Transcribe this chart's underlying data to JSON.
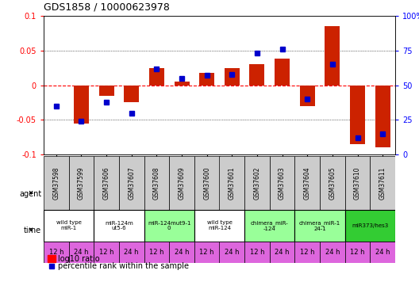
{
  "title": "GDS1858 / 10000623978",
  "samples": [
    "GSM37598",
    "GSM37599",
    "GSM37606",
    "GSM37607",
    "GSM37608",
    "GSM37609",
    "GSM37600",
    "GSM37601",
    "GSM37602",
    "GSM37603",
    "GSM37604",
    "GSM37605",
    "GSM37610",
    "GSM37611"
  ],
  "log10_ratio": [
    0.0,
    -0.055,
    -0.015,
    -0.025,
    0.025,
    0.005,
    0.018,
    0.025,
    0.03,
    0.038,
    -0.03,
    0.085,
    -0.085,
    -0.09
  ],
  "percentile_rank": [
    35,
    24,
    38,
    30,
    62,
    55,
    57,
    58,
    73,
    76,
    40,
    65,
    12,
    15
  ],
  "ylim_left": [
    -0.1,
    0.1
  ],
  "ylim_right": [
    0,
    100
  ],
  "yticks_left": [
    -0.1,
    -0.05,
    0.0,
    0.05,
    0.1
  ],
  "yticks_right": [
    0,
    25,
    50,
    75,
    100
  ],
  "ytick_labels_left": [
    "-0.1",
    "-0.05",
    "0",
    "0.05",
    "0.1"
  ],
  "ytick_labels_right": [
    "0",
    "25",
    "50",
    "75",
    "100%"
  ],
  "bar_color": "#cc2200",
  "dot_color": "#0000cc",
  "zero_line_color": "#cc0000",
  "agent_groups": [
    {
      "label": "wild type\nmiR-1",
      "samples": [
        0,
        1
      ],
      "color": "#ffffff"
    },
    {
      "label": "miR-124m\nut5-6",
      "samples": [
        2,
        3
      ],
      "color": "#ffffff"
    },
    {
      "label": "miR-124mut9-1\n0",
      "samples": [
        4,
        5
      ],
      "color": "#99ff99"
    },
    {
      "label": "wild type\nmiR-124",
      "samples": [
        6,
        7
      ],
      "color": "#ffffff"
    },
    {
      "label": "chimera_miR-\n-124",
      "samples": [
        8,
        9
      ],
      "color": "#99ff99"
    },
    {
      "label": "chimera_miR-1\n24-1",
      "samples": [
        10,
        11
      ],
      "color": "#99ff99"
    },
    {
      "label": "miR373/hes3",
      "samples": [
        12,
        13
      ],
      "color": "#33cc33"
    }
  ],
  "time_labels": [
    "12 h",
    "24 h",
    "12 h",
    "24 h",
    "12 h",
    "24 h",
    "12 h",
    "24 h",
    "12 h",
    "24 h",
    "12 h",
    "24 h",
    "12 h",
    "24 h"
  ],
  "time_color": "#dd66dd",
  "sample_bg_color": "#cccccc",
  "legend_bar_label": "log10 ratio",
  "legend_dot_label": "percentile rank within the sample"
}
